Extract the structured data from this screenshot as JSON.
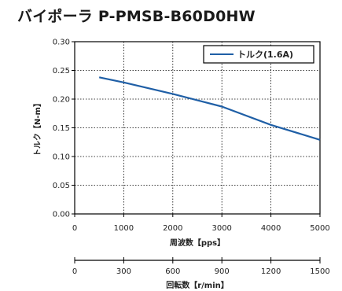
{
  "title": "バイポーラ P-PMSB-B60D0HW",
  "colors": {
    "series": "#1f5fa6",
    "axis": "#000000",
    "grid": "#000000"
  },
  "chart_data": [
    {
      "type": "line",
      "title": "バイポーラ P-PMSB-B60D0HW",
      "xlabel": "周波数【pps】",
      "ylabel": "トルク【N-m】",
      "xlim": [
        0,
        5000
      ],
      "ylim": [
        0,
        0.3
      ],
      "x_ticks": [
        0,
        1000,
        2000,
        3000,
        4000,
        5000
      ],
      "y_ticks": [
        0.0,
        0.05,
        0.1,
        0.15,
        0.2,
        0.25,
        0.3
      ],
      "y_tick_labels": [
        "0.00",
        "0.05",
        "0.10",
        "0.15",
        "0.20",
        "0.25",
        "0.30"
      ],
      "grid": true,
      "legend_position": "top-right",
      "series": [
        {
          "name": "トルク(1.6A)",
          "x": [
            500,
            1000,
            2000,
            3000,
            4000,
            5000
          ],
          "y": [
            0.238,
            0.229,
            0.209,
            0.187,
            0.155,
            0.129
          ]
        }
      ]
    },
    {
      "type": "axis",
      "xlabel": "回転数【r/min】",
      "xlim": [
        0,
        1500
      ],
      "x_ticks": [
        0,
        300,
        600,
        900,
        1200,
        1500
      ]
    }
  ]
}
